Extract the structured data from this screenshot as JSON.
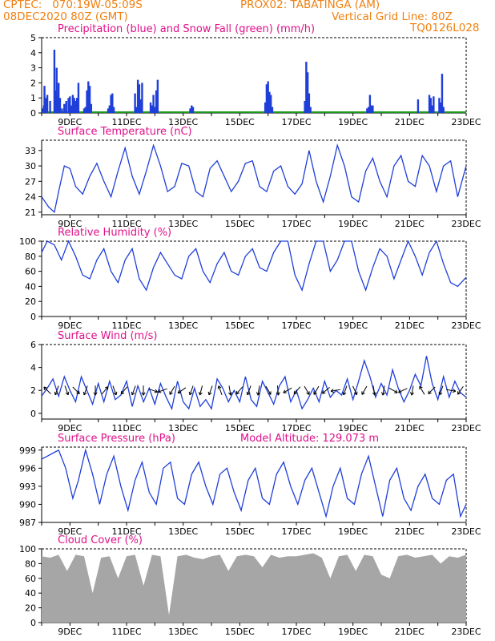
{
  "header": {
    "line1_left": "CPTEC:   070:19W-05:09S",
    "line1_right": "PROX02: TABATINGA (AM)",
    "line2_left": "08DEC2020 80Z (GMT)",
    "line2_right": "Vertical Grid Line: 80Z",
    "code": "TQ0126L028"
  },
  "colors": {
    "header": "#f08010",
    "title": "#e0108a",
    "line": "#1f3fd8",
    "precip": "#1f3fd8",
    "snow": "#1a9a1a",
    "cloud": "#a6a6a6"
  },
  "date_labels": [
    "9DEC",
    "11DEC",
    "13DEC",
    "15DEC",
    "17DEC",
    "19DEC",
    "21DEC",
    "23DEC"
  ],
  "chart_data": [
    {
      "type": "bar",
      "title": "Precipitation (blue) and Snow Fall (green) (mm/h)",
      "yticks": [
        0,
        1,
        2,
        3,
        4,
        5
      ],
      "ylim": [
        0,
        5
      ],
      "x_range_days": [
        0,
        15
      ],
      "series": [
        {
          "name": "Precipitation",
          "x": [
            0.05,
            0.08,
            0.1,
            0.15,
            0.2,
            0.3,
            0.45,
            0.5,
            0.53,
            0.56,
            0.6,
            0.65,
            0.72,
            0.8,
            0.87,
            0.95,
            1.0,
            1.05,
            1.1,
            1.15,
            1.2,
            1.25,
            1.3,
            1.5,
            1.55,
            1.6,
            1.65,
            1.7,
            1.75,
            2.35,
            2.4,
            2.45,
            2.5,
            2.55,
            3.3,
            3.35,
            3.4,
            3.45,
            3.5,
            3.55,
            3.85,
            3.9,
            3.95,
            4.0,
            4.05,
            4.1,
            5.25,
            5.3,
            5.35,
            7.9,
            7.95,
            8.0,
            8.05,
            8.1,
            8.15,
            9.3,
            9.35,
            9.4,
            9.45,
            9.5,
            11.5,
            11.55,
            11.6,
            11.65,
            11.7,
            13.3,
            13.7,
            13.75,
            13.8,
            13.85,
            14.05,
            14.1,
            14.15,
            14.2
          ],
          "values": [
            0.3,
            0.5,
            1.8,
            1.0,
            1.2,
            0.8,
            4.2,
            1.5,
            3.0,
            1.2,
            2.0,
            1.0,
            0.3,
            0.6,
            0.8,
            1.0,
            1.1,
            0.5,
            1.2,
            1.0,
            0.8,
            1.0,
            2.0,
            0.3,
            0.4,
            1.5,
            2.1,
            1.8,
            0.6,
            0.3,
            0.5,
            1.2,
            1.3,
            0.4,
            1.3,
            0.4,
            2.2,
            1.9,
            0.9,
            2.0,
            0.7,
            0.5,
            1.2,
            0.4,
            1.5,
            2.2,
            0.3,
            0.5,
            0.4,
            0.7,
            1.9,
            2.1,
            1.4,
            1.2,
            0.4,
            0.8,
            3.4,
            2.7,
            1.3,
            0.4,
            0.3,
            0.4,
            1.2,
            0.5,
            0.5,
            0.9,
            1.2,
            1.0,
            0.5,
            1.1,
            1.0,
            0.7,
            2.6,
            0.4
          ]
        },
        {
          "name": "Snow Fall",
          "x": [],
          "values": []
        }
      ]
    },
    {
      "type": "line",
      "title": "Surface Temperature (nC)",
      "yticks": [
        21,
        24,
        27,
        30,
        33
      ],
      "ylim": [
        20.5,
        35
      ],
      "series": [
        {
          "name": "Surface Temperature",
          "x": [
            0,
            0.25,
            0.45,
            0.6,
            0.8,
            1.0,
            1.2,
            1.45,
            1.7,
            1.95,
            2.2,
            2.45,
            2.7,
            2.95,
            3.2,
            3.45,
            3.7,
            3.95,
            4.2,
            4.45,
            4.7,
            4.95,
            5.2,
            5.45,
            5.7,
            5.95,
            6.2,
            6.45,
            6.7,
            6.95,
            7.2,
            7.45,
            7.7,
            7.95,
            8.2,
            8.45,
            8.7,
            8.95,
            9.2,
            9.45,
            9.7,
            9.95,
            10.2,
            10.45,
            10.7,
            10.95,
            11.2,
            11.45,
            11.7,
            11.95,
            12.2,
            12.45,
            12.7,
            12.95,
            13.2,
            13.45,
            13.7,
            13.95,
            14.2,
            14.45,
            14.7,
            15.0
          ],
          "values": [
            24,
            22,
            21,
            25,
            30,
            29.5,
            26,
            24.5,
            28,
            30.5,
            27,
            24,
            29,
            33.5,
            28,
            24.5,
            29,
            34,
            30,
            25,
            26,
            30.5,
            30,
            25,
            24,
            29.5,
            31,
            28,
            25,
            27,
            30.5,
            31,
            26,
            25,
            29,
            30,
            26,
            24.5,
            26.5,
            33,
            27,
            23,
            28,
            34,
            30,
            24,
            23,
            29,
            31.5,
            27,
            24,
            30,
            32,
            27,
            26,
            32,
            30,
            25,
            30,
            31,
            24,
            30
          ]
        }
      ]
    },
    {
      "type": "line",
      "title": "Relative Humidity (%)",
      "yticks": [
        0,
        20,
        40,
        60,
        80,
        100
      ],
      "ylim": [
        0,
        100
      ],
      "series": [
        {
          "name": "Relative Humidity",
          "x": [
            0,
            0.2,
            0.45,
            0.7,
            0.95,
            1.2,
            1.45,
            1.7,
            1.95,
            2.2,
            2.45,
            2.7,
            2.95,
            3.2,
            3.45,
            3.7,
            3.95,
            4.2,
            4.45,
            4.7,
            4.95,
            5.2,
            5.45,
            5.7,
            5.95,
            6.2,
            6.45,
            6.7,
            6.95,
            7.2,
            7.45,
            7.7,
            7.95,
            8.2,
            8.45,
            8.7,
            8.95,
            9.2,
            9.45,
            9.7,
            9.95,
            10.2,
            10.45,
            10.7,
            10.95,
            11.2,
            11.45,
            11.7,
            11.95,
            12.2,
            12.45,
            12.7,
            12.95,
            13.2,
            13.45,
            13.7,
            13.95,
            14.2,
            14.45,
            14.7,
            15.0
          ],
          "values": [
            85,
            100,
            95,
            75,
            100,
            80,
            55,
            50,
            75,
            90,
            60,
            45,
            75,
            90,
            50,
            35,
            65,
            85,
            70,
            55,
            50,
            80,
            90,
            60,
            45,
            70,
            85,
            60,
            55,
            80,
            90,
            65,
            60,
            85,
            100,
            100,
            55,
            35,
            70,
            100,
            100,
            60,
            75,
            100,
            100,
            60,
            35,
            65,
            90,
            80,
            50,
            75,
            100,
            80,
            55,
            85,
            100,
            70,
            45,
            40,
            52
          ]
        }
      ]
    },
    {
      "type": "line",
      "title": "Surface Wind (m/s)",
      "yticks": [
        0,
        2,
        4,
        6
      ],
      "ylim": [
        -0.5,
        6
      ],
      "series": [
        {
          "name": "Surface Wind",
          "x": [
            0,
            0.2,
            0.4,
            0.6,
            0.8,
            1.0,
            1.2,
            1.4,
            1.6,
            1.8,
            2.0,
            2.2,
            2.4,
            2.6,
            2.8,
            3.0,
            3.2,
            3.4,
            3.6,
            3.8,
            4.0,
            4.2,
            4.4,
            4.6,
            4.8,
            5.0,
            5.2,
            5.4,
            5.6,
            5.8,
            6.0,
            6.2,
            6.4,
            6.6,
            6.8,
            7.0,
            7.2,
            7.4,
            7.6,
            7.8,
            8.0,
            8.2,
            8.4,
            8.6,
            8.8,
            9.0,
            9.2,
            9.4,
            9.6,
            9.8,
            10.0,
            10.2,
            10.4,
            10.6,
            10.8,
            11.0,
            11.2,
            11.4,
            11.6,
            11.8,
            12.0,
            12.2,
            12.4,
            12.6,
            12.8,
            13.0,
            13.2,
            13.4,
            13.6,
            13.8,
            14.0,
            14.2,
            14.4,
            14.6,
            14.8,
            15.0
          ],
          "values": [
            1.5,
            2.2,
            3.0,
            1.5,
            3.2,
            2.0,
            1.0,
            3.2,
            2.0,
            0.8,
            2.6,
            1.0,
            2.8,
            1.2,
            1.6,
            2.8,
            0.6,
            2.4,
            1.0,
            2.2,
            0.8,
            2.6,
            1.4,
            0.4,
            2.8,
            1.0,
            0.4,
            2.2,
            0.6,
            1.2,
            0.4,
            3.0,
            2.2,
            1.0,
            2.0,
            1.0,
            3.2,
            1.2,
            0.6,
            2.8,
            1.8,
            0.8,
            2.4,
            3.2,
            1.0,
            2.0,
            0.4,
            1.2,
            2.2,
            1.0,
            2.8,
            1.4,
            2.0,
            1.6,
            3.0,
            1.2,
            2.8,
            4.6,
            3.2,
            1.4,
            2.6,
            1.6,
            3.8,
            2.2,
            1.0,
            2.0,
            3.4,
            2.4,
            5.0,
            2.6,
            1.2,
            3.2,
            1.4,
            2.8,
            1.8,
            1.4
          ]
        }
      ],
      "wind_arrows_deg": [
        315,
        200,
        160,
        135,
        200,
        180,
        40,
        160,
        220,
        200,
        180,
        110,
        250,
        210,
        235,
        200,
        195,
        200,
        340,
        170,
        220,
        200,
        190,
        150,
        175,
        240,
        220,
        150,
        210,
        230,
        260,
        200,
        155,
        210,
        170,
        190,
        120,
        245,
        190,
        330,
        225,
        200,
        100,
        215
      ]
    },
    {
      "type": "line",
      "title": "Surface Pressure (hPa)",
      "annotation": "Model Altitude: 129.073 m",
      "yticks": [
        987,
        990,
        993,
        996,
        999
      ],
      "ylim": [
        987,
        999.5
      ],
      "series": [
        {
          "name": "Surface Pressure",
          "x": [
            0,
            0.2,
            0.4,
            0.6,
            0.85,
            1.1,
            1.3,
            1.55,
            1.8,
            2.05,
            2.3,
            2.55,
            2.8,
            3.05,
            3.3,
            3.55,
            3.8,
            4.05,
            4.3,
            4.55,
            4.8,
            5.05,
            5.3,
            5.55,
            5.8,
            6.05,
            6.3,
            6.55,
            6.8,
            7.05,
            7.3,
            7.55,
            7.8,
            8.05,
            8.3,
            8.55,
            8.8,
            9.05,
            9.3,
            9.55,
            9.8,
            10.05,
            10.3,
            10.55,
            10.8,
            11.05,
            11.3,
            11.55,
            11.8,
            12.05,
            12.3,
            12.55,
            12.8,
            13.05,
            13.3,
            13.55,
            13.8,
            14.05,
            14.3,
            14.55,
            14.8,
            15.0
          ],
          "values": [
            997.5,
            998,
            998.5,
            999,
            996,
            991,
            994,
            999,
            995,
            990,
            995,
            998,
            993,
            989,
            994,
            997,
            992,
            990,
            996,
            997,
            991,
            990,
            995,
            997,
            993,
            990,
            995,
            996,
            992,
            989,
            994,
            996,
            991,
            990,
            995,
            997,
            993,
            990,
            994,
            996,
            992,
            988,
            993,
            996,
            991,
            990,
            995,
            998,
            993,
            988,
            994,
            996,
            991,
            989,
            993,
            995,
            991,
            990,
            994,
            995,
            988,
            990
          ]
        }
      ]
    },
    {
      "type": "area",
      "title": "Cloud Cover (%)",
      "yticks": [
        0,
        20,
        40,
        60,
        80,
        100
      ],
      "ylim": [
        0,
        100
      ],
      "series": [
        {
          "name": "Cloud Cover",
          "x": [
            0,
            0.3,
            0.6,
            0.9,
            1.2,
            1.5,
            1.8,
            2.1,
            2.4,
            2.7,
            3.0,
            3.3,
            3.6,
            3.9,
            4.2,
            4.5,
            4.8,
            5.1,
            5.4,
            5.7,
            6.0,
            6.3,
            6.6,
            6.9,
            7.2,
            7.5,
            7.8,
            8.1,
            8.4,
            8.7,
            9.0,
            9.3,
            9.6,
            9.9,
            10.2,
            10.5,
            10.8,
            11.1,
            11.4,
            11.7,
            12.0,
            12.3,
            12.6,
            12.9,
            13.2,
            13.5,
            13.8,
            14.1,
            14.4,
            14.7,
            15.0
          ],
          "values": [
            90,
            88,
            92,
            70,
            92,
            90,
            40,
            88,
            90,
            60,
            90,
            92,
            50,
            92,
            90,
            10,
            90,
            92,
            88,
            86,
            90,
            92,
            70,
            90,
            92,
            90,
            75,
            92,
            88,
            90,
            90,
            92,
            94,
            88,
            60,
            90,
            92,
            70,
            92,
            90,
            65,
            60,
            90,
            92,
            88,
            90,
            92,
            80,
            90,
            88,
            92
          ]
        }
      ]
    }
  ]
}
